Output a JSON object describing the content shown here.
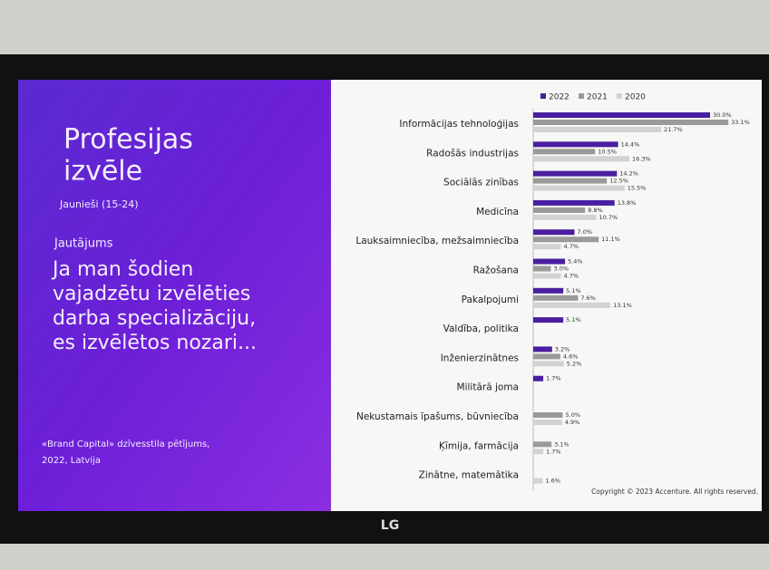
{
  "slide": {
    "title_lines": [
      "Profesijas",
      "izvēle"
    ],
    "audience": "Jaunieši (15-24)",
    "question_label": "Jautājums",
    "question_lines": [
      "Ja man šodien",
      "vajadzētu izvēlēties",
      "darba specializāciju,",
      "es izvēlētos nozari..."
    ],
    "source_lines": [
      "«Brand Capital» dzīvesstila pētījums,",
      "2022, Latvija"
    ]
  },
  "chart_data": {
    "type": "bar",
    "orientation": "horizontal",
    "legend": "top-right",
    "categories": [
      "Informācijas tehnoloģijas",
      "Radošās industrijas",
      "Sociālās zinības",
      "Medicīna",
      "Lauksaimniecība, mežsaimniecība",
      "Ražošana",
      "Pakalpojumi",
      "Valdība, politika",
      "Inženierzinātnes",
      "Militārā joma",
      "Nekustamais īpašums, būvniecība",
      "Ķīmija, farmācija",
      "Zinātne, matemātika"
    ],
    "series": [
      {
        "name": "2022",
        "color": "#4a1ea0",
        "values": [
          30.0,
          14.4,
          14.2,
          13.8,
          7.0,
          5.4,
          5.1,
          5.1,
          3.2,
          1.7,
          null,
          null,
          null
        ],
        "value_labels": [
          "30.0%",
          "14.4%",
          "14.2%",
          "13.8%",
          "7.0%",
          "5.4%",
          "5.1%",
          "5.1%",
          "3.2%",
          "1.7%",
          null,
          null,
          null
        ]
      },
      {
        "name": "2021",
        "color": "#9a9a9a",
        "values": [
          33.1,
          10.5,
          12.5,
          8.8,
          11.1,
          3.0,
          7.6,
          null,
          4.6,
          null,
          5.0,
          3.1,
          null
        ],
        "value_labels": [
          "33.1%",
          "10.5%",
          "12.5%",
          "8.8%",
          "11.1%",
          "3.0%",
          "7.6%",
          null,
          "4.6%",
          null,
          "5.0%",
          "3.1%",
          null
        ]
      },
      {
        "name": "2020",
        "color": "#d2d2d2",
        "values": [
          21.7,
          16.3,
          15.5,
          10.7,
          4.7,
          4.7,
          13.1,
          null,
          5.2,
          null,
          4.9,
          1.7,
          1.6
        ],
        "value_labels": [
          "21.7%",
          "16.3%",
          "15.5%",
          "10.7%",
          "4.7%",
          "4.7%",
          "13.1%",
          null,
          "5.2%",
          null,
          "4.9%",
          "1.7%",
          "1.6%"
        ]
      }
    ]
  },
  "copyright": "Copyright © 2023 Accenture. All rights reserved.",
  "monitor": {
    "brand": "LG"
  }
}
